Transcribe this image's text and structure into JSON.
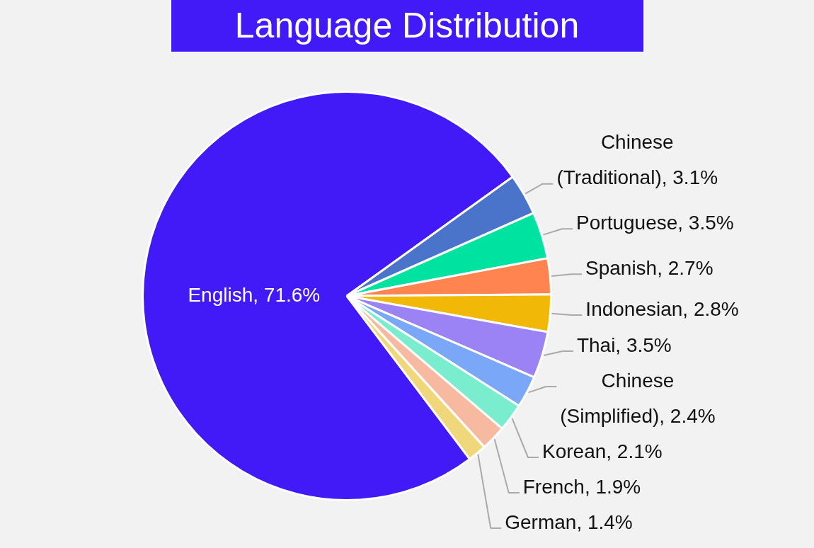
{
  "chart_data": {
    "type": "pie",
    "title": "Language Distribution",
    "categories": [
      "English",
      "Chinese (Traditional)",
      "Portuguese",
      "Spanish",
      "Indonesian",
      "Thai",
      "Chinese (Simplified)",
      "Korean",
      "French",
      "German"
    ],
    "values": [
      71.6,
      3.1,
      3.5,
      2.7,
      2.8,
      3.5,
      2.4,
      2.1,
      1.9,
      1.4
    ],
    "value_labels": [
      "71.6%",
      "3.1%",
      "3.5%",
      "2.7%",
      "2.8%",
      "3.5%",
      "2.4%",
      "2.1%",
      "1.9%",
      "1.4%"
    ],
    "colors": [
      "#4219f7",
      "#4a74ca",
      "#00e3a0",
      "#ff8450",
      "#f2b807",
      "#9b83f5",
      "#7aa7f7",
      "#7aedcf",
      "#f7baa0",
      "#f0d77b"
    ]
  }
}
